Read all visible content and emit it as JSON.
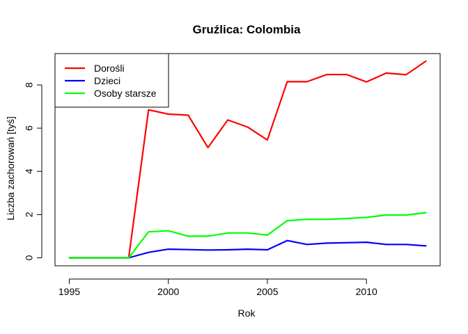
{
  "chart_data": {
    "type": "line",
    "title": "Gruźlica: Colombia",
    "xlabel": "Rok",
    "ylabel": "Liczba zachorowań [tyś]",
    "x": [
      1995,
      1996,
      1997,
      1998,
      1999,
      2000,
      2001,
      2002,
      2003,
      2004,
      2005,
      2006,
      2007,
      2008,
      2009,
      2010,
      2011,
      2012,
      2013
    ],
    "xlim": [
      1994.28,
      2013.72
    ],
    "ylim": [
      -0.37,
      9.45
    ],
    "xticks": [
      1995,
      2000,
      2005,
      2010
    ],
    "yticks": [
      0,
      2,
      4,
      6,
      8
    ],
    "grid": false,
    "legend_position": "top-left",
    "series": [
      {
        "name": "Dorośli",
        "color": "#ff0000",
        "values": [
          0,
          0,
          0,
          0,
          6.85,
          6.65,
          6.6,
          5.1,
          6.38,
          6.05,
          5.45,
          8.15,
          8.15,
          8.48,
          8.48,
          8.14,
          8.55,
          8.47,
          9.1
        ]
      },
      {
        "name": "Dzieci",
        "color": "#0000ff",
        "values": [
          0,
          0,
          0,
          0,
          0.25,
          0.4,
          0.38,
          0.36,
          0.37,
          0.4,
          0.37,
          0.8,
          0.62,
          0.68,
          0.7,
          0.72,
          0.62,
          0.62,
          0.55
        ]
      },
      {
        "name": "Osoby starsze",
        "color": "#00ff00",
        "values": [
          0,
          0,
          0,
          0,
          1.2,
          1.25,
          1.0,
          1.0,
          1.15,
          1.15,
          1.05,
          1.72,
          1.78,
          1.78,
          1.82,
          1.87,
          1.98,
          1.98,
          2.09
        ]
      }
    ]
  }
}
